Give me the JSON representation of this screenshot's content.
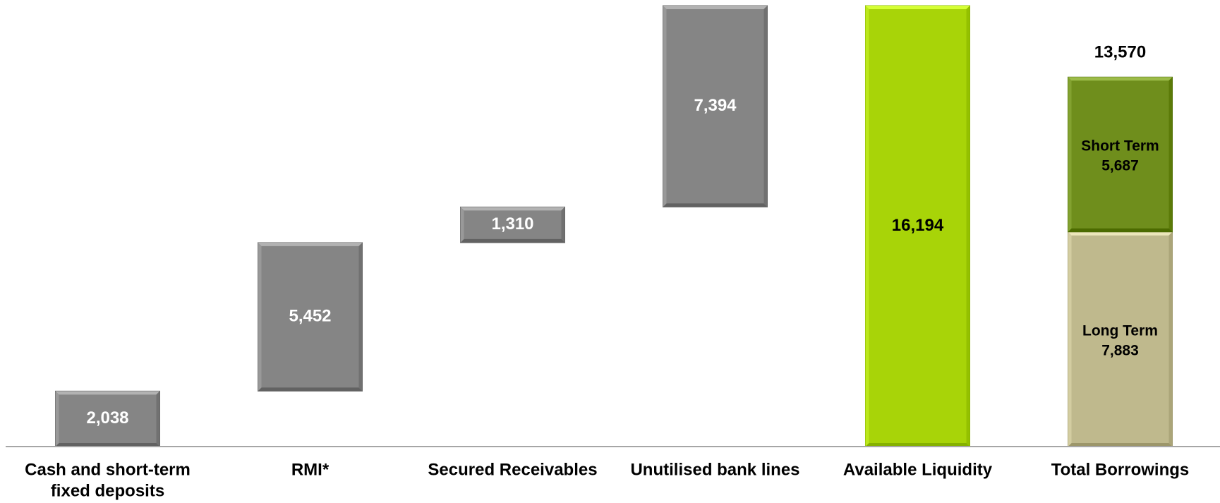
{
  "chart_data": {
    "type": "bar",
    "subtype": "waterfall",
    "title": "",
    "xlabel": "",
    "ylabel": "",
    "ylim": [
      0,
      16194
    ],
    "grid": false,
    "legend": "none",
    "categories": [
      "Cash and short-term fixed deposits",
      "RMI*",
      "Secured Receivables",
      "Unutilised bank lines",
      "Available Liquidity",
      "Total Borrowings"
    ],
    "category_lines": [
      [
        "Cash and short-term",
        "fixed deposits"
      ],
      [
        "RMI*"
      ],
      [
        "Secured Receivables"
      ],
      [
        "Unutilised bank lines"
      ],
      [
        "Available Liquidity"
      ],
      [
        "Total Borrowings"
      ]
    ],
    "bars": [
      {
        "category": "Cash and short-term fixed deposits",
        "kind": "increment",
        "value": 2038,
        "label": "2,038",
        "color": "#858585",
        "label_color": "#ffffff"
      },
      {
        "category": "RMI*",
        "kind": "increment",
        "value": 5452,
        "label": "5,452",
        "color": "#858585",
        "label_color": "#ffffff"
      },
      {
        "category": "Secured Receivables",
        "kind": "increment",
        "value": 1310,
        "label": "1,310",
        "color": "#858585",
        "label_color": "#ffffff"
      },
      {
        "category": "Unutilised bank lines",
        "kind": "increment",
        "value": 7394,
        "label": "7,394",
        "color": "#858585",
        "label_color": "#ffffff"
      },
      {
        "category": "Available Liquidity",
        "kind": "total",
        "value": 16194,
        "label": "16,194",
        "color": "#a8d408",
        "label_color": "#000000"
      }
    ],
    "stacked": {
      "category": "Total Borrowings",
      "total": 13570,
      "total_label": "13,570",
      "segments": [
        {
          "name": "Long Term",
          "value": 7883,
          "label": "7,883",
          "color": "#bfb98d"
        },
        {
          "name": "Short Term",
          "value": 5687,
          "label": "5,687",
          "color": "#6f8e1c"
        }
      ]
    }
  }
}
